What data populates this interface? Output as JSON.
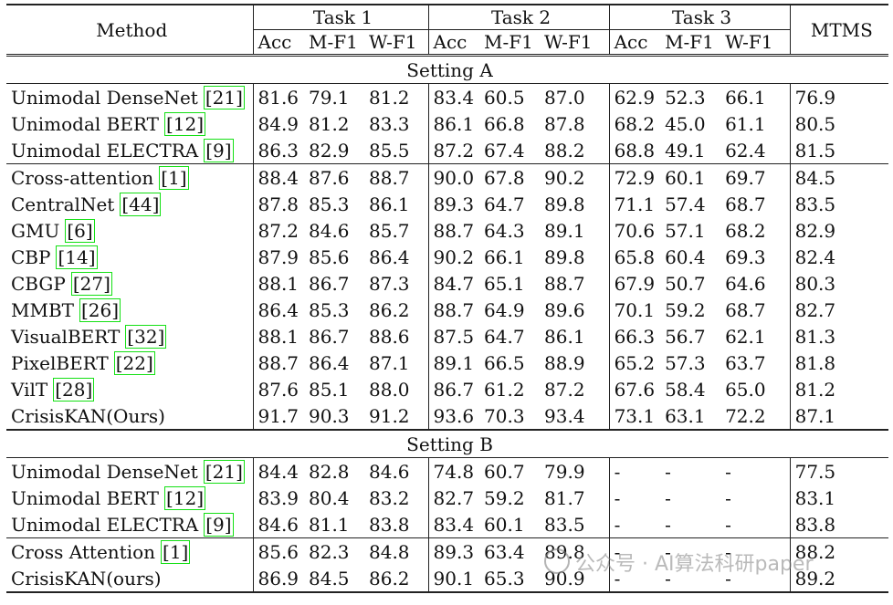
{
  "header": {
    "method": "Method",
    "tasks": [
      "Task 1",
      "Task 2",
      "Task 3"
    ],
    "mtms": "MTMS",
    "metrics": [
      "Acc",
      "M-F1",
      "W-F1"
    ]
  },
  "setting_a": {
    "label": "Setting A",
    "groups": [
      [
        {
          "name": "Unimodal DenseNet",
          "ref": "21",
          "vals": [
            "81.6",
            "79.1",
            "81.2",
            "83.4",
            "60.5",
            "87.0",
            "62.9",
            "52.3",
            "66.1",
            "76.9"
          ]
        },
        {
          "name": "Unimodal BERT",
          "ref": "12",
          "vals": [
            "84.9",
            "81.2",
            "83.3",
            "86.1",
            "66.8",
            "87.8",
            "68.2",
            "45.0",
            "61.1",
            "80.5"
          ]
        },
        {
          "name": "Unimodal ELECTRA",
          "ref": "9",
          "vals": [
            "86.3",
            "82.9",
            "85.5",
            "87.2",
            "67.4",
            "88.2",
            "68.8",
            "49.1",
            "62.4",
            "81.5"
          ]
        }
      ],
      [
        {
          "name": "Cross-attention",
          "ref": "1",
          "vals": [
            "88.4",
            "87.6",
            "88.7",
            "90.0",
            "67.8",
            "90.2",
            "72.9",
            "60.1",
            "69.7",
            "84.5"
          ]
        },
        {
          "name": "CentralNet",
          "ref": "44",
          "vals": [
            "87.8",
            "85.3",
            "86.1",
            "89.3",
            "64.7",
            "89.8",
            "71.1",
            "57.4",
            "68.7",
            "83.5"
          ]
        },
        {
          "name": "GMU",
          "ref": "6",
          "vals": [
            "87.2",
            "84.6",
            "85.7",
            "88.7",
            "64.3",
            "89.1",
            "70.6",
            "57.1",
            "68.2",
            "82.9"
          ]
        },
        {
          "name": "CBP",
          "ref": "14",
          "vals": [
            "87.9",
            "85.6",
            "86.4",
            "90.2",
            "66.1",
            "89.8",
            "65.8",
            "60.4",
            "69.3",
            "82.4"
          ]
        },
        {
          "name": "CBGP",
          "ref": "27",
          "vals": [
            "88.1",
            "86.7",
            "87.3",
            "84.7",
            "65.1",
            "88.7",
            "67.9",
            "50.7",
            "64.6",
            "80.3"
          ]
        },
        {
          "name": "MMBT",
          "ref": "26",
          "vals": [
            "86.4",
            "85.3",
            "86.2",
            "88.7",
            "64.9",
            "89.6",
            "70.1",
            "59.2",
            "68.7",
            "82.7"
          ]
        },
        {
          "name": "VisualBERT",
          "ref": "32",
          "vals": [
            "88.1",
            "86.7",
            "88.6",
            "87.5",
            "64.7",
            "86.1",
            "66.3",
            "56.7",
            "62.1",
            "81.3"
          ]
        },
        {
          "name": "PixelBERT",
          "ref": "22",
          "vals": [
            "88.7",
            "86.4",
            "87.1",
            "89.1",
            "66.5",
            "88.9",
            "65.2",
            "57.3",
            "63.7",
            "81.8"
          ]
        },
        {
          "name": "VilT",
          "ref": "28",
          "vals": [
            "87.6",
            "85.1",
            "88.0",
            "86.7",
            "61.2",
            "87.2",
            "67.6",
            "58.4",
            "65.0",
            "81.2"
          ]
        },
        {
          "name": "CrisisKAN(Ours)",
          "ref": "",
          "bold": true,
          "vals": [
            "91.7",
            "90.3",
            "91.2",
            "93.6",
            "70.3",
            "93.4",
            "73.1",
            "63.1",
            "72.2",
            "87.1"
          ]
        }
      ]
    ]
  },
  "setting_b": {
    "label": "Setting B",
    "groups": [
      [
        {
          "name": "Unimodal DenseNet",
          "ref": "21",
          "vals": [
            "84.4",
            "82.8",
            "84.6",
            "74.8",
            "60.7",
            "79.9",
            "-",
            "-",
            "-",
            "77.5"
          ]
        },
        {
          "name": "Unimodal BERT",
          "ref": "12",
          "vals": [
            "83.9",
            "80.4",
            "83.2",
            "82.7",
            "59.2",
            "81.7",
            "-",
            "-",
            "-",
            "83.1"
          ]
        },
        {
          "name": "Unimodal ELECTRA",
          "ref": "9",
          "vals": [
            "84.6",
            "81.1",
            "83.8",
            "83.4",
            "60.1",
            "83.5",
            "-",
            "-",
            "-",
            "83.8"
          ]
        }
      ],
      [
        {
          "name": "Cross Attention",
          "ref": "1",
          "vals": [
            "85.6",
            "82.3",
            "84.8",
            "89.3",
            "63.4",
            "89.8",
            "-",
            "-",
            "-",
            "88.2"
          ]
        },
        {
          "name": "CrisisKAN(ours)",
          "ref": "",
          "bold": true,
          "vals": [
            "86.9",
            "84.5",
            "86.2",
            "90.1",
            "65.3",
            "90.9",
            "-",
            "-",
            "-",
            "89.2"
          ]
        }
      ]
    ]
  },
  "watermark": "公众号 · AI算法科研paper"
}
